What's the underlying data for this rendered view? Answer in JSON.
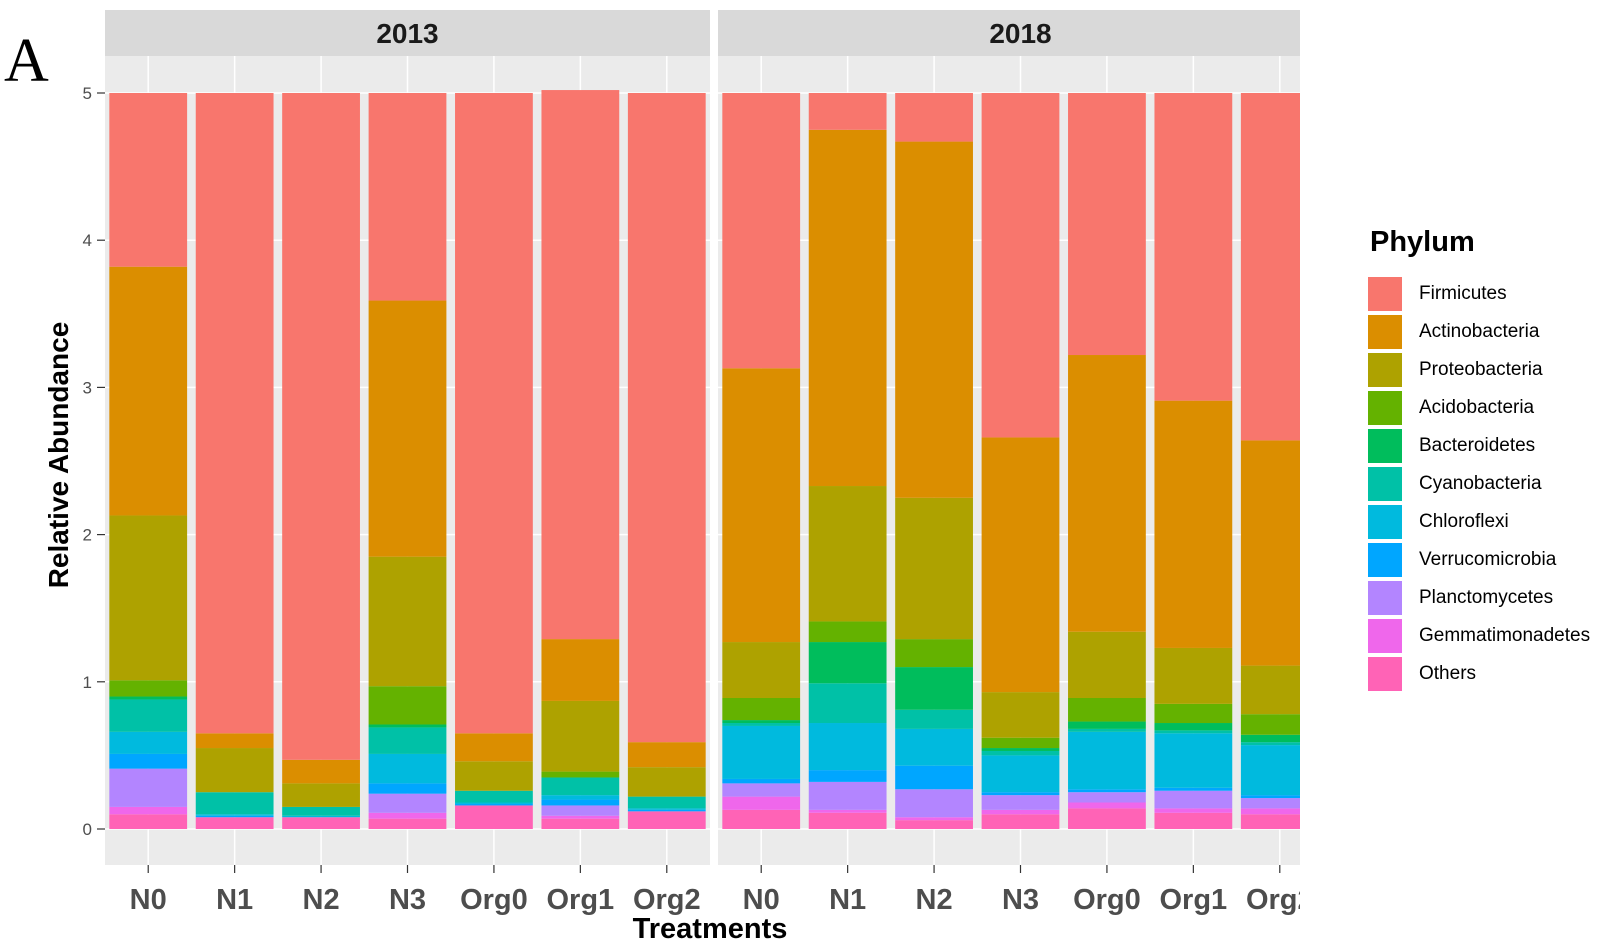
{
  "panel_label": "A",
  "legend": {
    "title": "Phylum"
  },
  "chart_data": {
    "type": "bar",
    "stacked": true,
    "xlabel": "Treatments",
    "ylabel": "Relative Abundance",
    "ylim": [
      0,
      5
    ],
    "yticks": [
      0,
      1,
      2,
      3,
      4,
      5
    ],
    "grid": true,
    "legend_position": "right",
    "facets": [
      "2013",
      "2018"
    ],
    "categories": [
      "N0",
      "N1",
      "N2",
      "N3",
      "Org0",
      "Org1",
      "Org2"
    ],
    "series_colors": {
      "Firmicutes": "#F8766D",
      "Actinobacteria": "#DB8E00",
      "Proteobacteria": "#AEA200",
      "Acidobacteria": "#64B200",
      "Bacteroidetes": "#00BD5C",
      "Cyanobacteria": "#00C1A7",
      "Chloroflexi": "#00BADE",
      "Verrucomicrobia": "#00A6FF",
      "Planctomycetes": "#B385FF",
      "Gemmatimonadetes": "#EF67EB",
      "Others": "#FF63B6"
    },
    "series": [
      {
        "name": "Firmicutes",
        "2013": [
          1.18,
          4.35,
          4.53,
          1.41,
          4.35,
          3.73,
          4.41
        ],
        "2018": [
          1.87,
          0.25,
          0.33,
          2.34,
          1.78,
          2.09,
          2.36
        ]
      },
      {
        "name": "Actinobacteria",
        "2013": [
          1.69,
          0.1,
          0.16,
          1.74,
          0.19,
          0.42,
          0.17
        ],
        "2018": [
          1.86,
          2.42,
          2.42,
          1.73,
          1.88,
          1.68,
          1.53
        ]
      },
      {
        "name": "Proteobacteria",
        "2013": [
          1.12,
          0.3,
          0.16,
          0.88,
          0.2,
          0.48,
          0.2
        ],
        "2018": [
          0.38,
          0.92,
          0.96,
          0.31,
          0.45,
          0.38,
          0.33
        ]
      },
      {
        "name": "Acidobacteria",
        "2013": [
          0.11,
          0.0,
          0.0,
          0.26,
          0.0,
          0.04,
          0.0
        ],
        "2018": [
          0.15,
          0.14,
          0.19,
          0.07,
          0.16,
          0.13,
          0.14
        ]
      },
      {
        "name": "Bacteroidetes",
        "2013": [
          0.02,
          0.0,
          0.0,
          0.02,
          0.0,
          0.0,
          0.0
        ],
        "2018": [
          0.02,
          0.28,
          0.29,
          0.02,
          0.05,
          0.05,
          0.05
        ]
      },
      {
        "name": "Cyanobacteria",
        "2013": [
          0.22,
          0.15,
          0.06,
          0.18,
          0.08,
          0.12,
          0.08
        ],
        "2018": [
          0.02,
          0.27,
          0.13,
          0.03,
          0.02,
          0.02,
          0.02
        ]
      },
      {
        "name": "Chloroflexi",
        "2013": [
          0.15,
          0.01,
          0.01,
          0.2,
          0.01,
          0.03,
          0.01
        ],
        "2018": [
          0.36,
          0.32,
          0.25,
          0.25,
          0.39,
          0.37,
          0.34
        ]
      },
      {
        "name": "Verrucomicrobia",
        "2013": [
          0.1,
          0.01,
          0.0,
          0.07,
          0.01,
          0.04,
          0.01
        ],
        "2018": [
          0.03,
          0.08,
          0.16,
          0.02,
          0.02,
          0.02,
          0.02
        ]
      },
      {
        "name": "Planctomycetes",
        "2013": [
          0.26,
          0.0,
          0.0,
          0.13,
          0.0,
          0.07,
          0.0
        ],
        "2018": [
          0.09,
          0.19,
          0.19,
          0.1,
          0.07,
          0.12,
          0.07
        ]
      },
      {
        "name": "Gemmatimonadetes",
        "2013": [
          0.05,
          0.0,
          0.0,
          0.04,
          0.0,
          0.02,
          0.0
        ],
        "2018": [
          0.09,
          0.02,
          0.02,
          0.03,
          0.04,
          0.03,
          0.04
        ]
      },
      {
        "name": "Others",
        "2013": [
          0.1,
          0.08,
          0.08,
          0.07,
          0.16,
          0.07,
          0.12
        ],
        "2018": [
          0.13,
          0.11,
          0.06,
          0.1,
          0.14,
          0.11,
          0.1
        ]
      }
    ]
  }
}
